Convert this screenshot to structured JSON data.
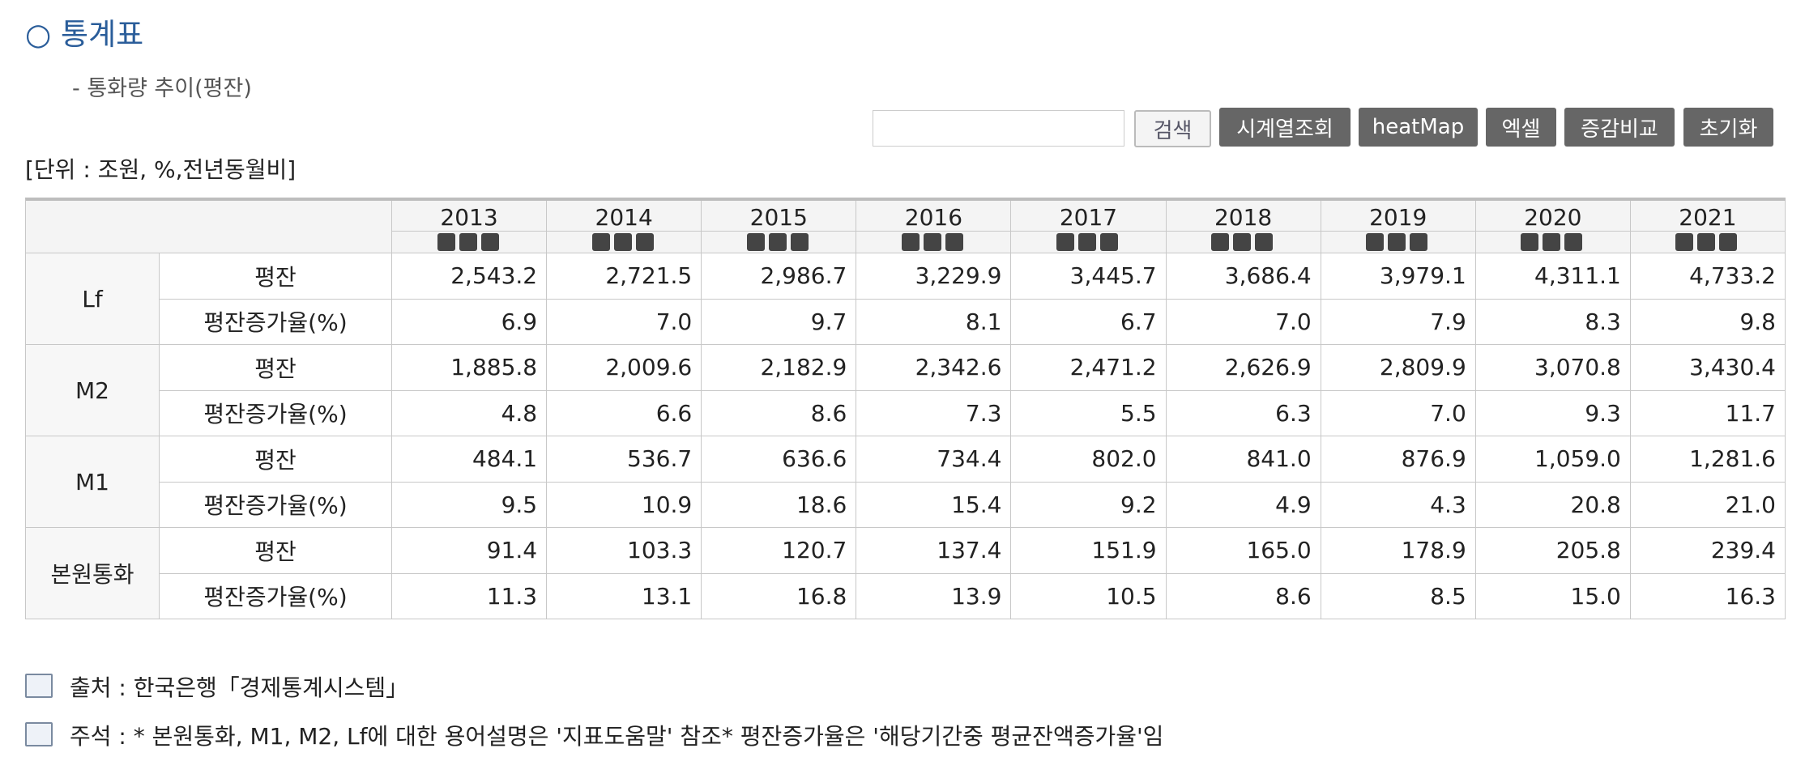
{
  "header": {
    "title": "○ 통계표",
    "subtitle": "- 통화량 추이(평잔)"
  },
  "toolbar": {
    "buttons": [
      "검색",
      "시계열조회",
      "heatMap",
      "엑셀",
      "증감비교",
      "초기화"
    ]
  },
  "unit": "[단위 : 조원, %,전년동월비]",
  "table": {
    "columns": [
      "2013",
      "2014",
      "2015",
      "2016",
      "2017",
      "2018",
      "2019",
      "2020",
      "2021"
    ],
    "groups": [
      {
        "name": "Lf",
        "rows": [
          {
            "label": "평잔",
            "values": [
              "2,543.2",
              "2,721.5",
              "2,986.7",
              "3,229.9",
              "3,445.7",
              "3,686.4",
              "3,979.1",
              "4,311.1",
              "4,733.2"
            ]
          },
          {
            "label": "평잔증가율(%)",
            "values": [
              "6.9",
              "7.0",
              "9.7",
              "8.1",
              "6.7",
              "7.0",
              "7.9",
              "8.3",
              "9.8"
            ]
          }
        ]
      },
      {
        "name": "M2",
        "rows": [
          {
            "label": "평잔",
            "values": [
              "1,885.8",
              "2,009.6",
              "2,182.9",
              "2,342.6",
              "2,471.2",
              "2,626.9",
              "2,809.9",
              "3,070.8",
              "3,430.4"
            ]
          },
          {
            "label": "평잔증가율(%)",
            "values": [
              "4.8",
              "6.6",
              "8.6",
              "7.3",
              "5.5",
              "6.3",
              "7.0",
              "9.3",
              "11.7"
            ]
          }
        ]
      },
      {
        "name": "M1",
        "rows": [
          {
            "label": "평잔",
            "values": [
              "484.1",
              "536.7",
              "636.6",
              "734.4",
              "802.0",
              "841.0",
              "876.9",
              "1,059.0",
              "1,281.6"
            ]
          },
          {
            "label": "평잔증가율(%)",
            "values": [
              "9.5",
              "10.9",
              "18.6",
              "15.4",
              "9.2",
              "4.9",
              "4.3",
              "20.8",
              "21.0"
            ]
          }
        ]
      },
      {
        "name": "본원통화",
        "rows": [
          {
            "label": "평잔",
            "values": [
              "91.4",
              "103.3",
              "120.7",
              "137.4",
              "151.9",
              "165.0",
              "178.9",
              "205.8",
              "239.4"
            ]
          },
          {
            "label": "평잔증가율(%)",
            "values": [
              "11.3",
              "13.1",
              "16.8",
              "13.9",
              "10.5",
              "8.6",
              "8.5",
              "15.0",
              "16.3"
            ]
          }
        ]
      }
    ]
  },
  "footer": [
    "출처 : 한국은행「경제통계시스템」",
    "주석 : * 본원통화, M1, M2, Lf에 대한 용어설명은 '지표도움말' 참조* 평잔증가율은 '해당기간중 평균잔액증가율'임"
  ]
}
